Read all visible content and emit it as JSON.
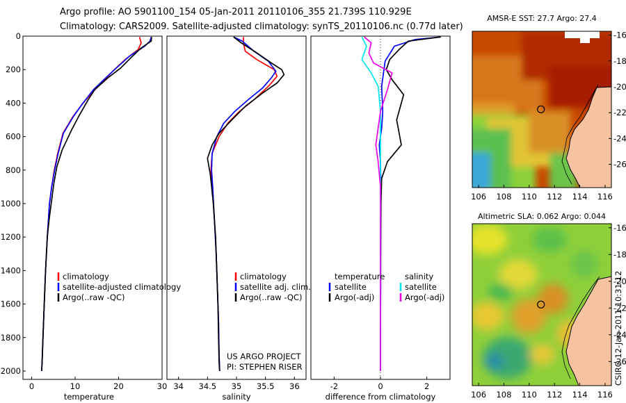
{
  "header": {
    "line1": "Argo profile: AO 5901100_154 05-Jan-2011 20110106_355 21.739S 110.929E",
    "line2": "Climatology: CARS2009. Satellite-adjusted climatology: synTS_20110106.nc (0.77d later)"
  },
  "colors": {
    "climatology": "#ff0000",
    "satellite": "#0000ff",
    "argo": "#000000",
    "sat_salinity": "#00e5ee",
    "argo_salinity": "#ee00ee"
  },
  "chart_data": [
    {
      "type": "line",
      "xlabel": "temperature",
      "ylabel": "",
      "xlim": [
        -2,
        30
      ],
      "ylim": [
        2050,
        0
      ],
      "xticks": [
        0,
        10,
        20,
        30
      ],
      "yticks": [
        0,
        200,
        400,
        600,
        800,
        1000,
        1200,
        1400,
        1600,
        1800,
        2000
      ],
      "legend": [
        "climatology",
        "satellite-adjusted climatology",
        "Argo(..raw -QC)"
      ],
      "legend_position": "lower-center",
      "series": [
        {
          "name": "climatology",
          "color": "#ff0000",
          "x": [
            24.8,
            25.2,
            24.5,
            21.5,
            19.0,
            16.8,
            14.2,
            11.8,
            9.5,
            7.2,
            6.0,
            5.2,
            4.6,
            4.1,
            3.6,
            3.2,
            2.9,
            2.6,
            2.4,
            2.3
          ],
          "y": [
            5,
            40,
            80,
            140,
            200,
            260,
            330,
            400,
            480,
            580,
            700,
            800,
            900,
            1000,
            1200,
            1400,
            1600,
            1800,
            1950,
            2000
          ]
        },
        {
          "name": "satellite",
          "color": "#0000ff",
          "x": [
            27.5,
            27.2,
            26.0,
            22.5,
            19.5,
            17.0,
            14.2,
            11.8,
            9.6,
            7.3,
            6.1,
            5.3,
            4.6,
            4.1,
            3.6,
            3.2,
            2.9,
            2.6,
            2.4,
            2.3
          ],
          "y": [
            5,
            30,
            60,
            120,
            190,
            250,
            320,
            400,
            480,
            580,
            700,
            800,
            900,
            1000,
            1200,
            1400,
            1600,
            1800,
            1950,
            2000
          ]
        },
        {
          "name": "Argo",
          "color": "#000000",
          "x": [
            27.6,
            27.5,
            25.2,
            22.8,
            20.5,
            17.5,
            14.5,
            13.0,
            11.0,
            9.2,
            7.0,
            5.8,
            5.1,
            4.5,
            4.0,
            3.6,
            3.2,
            2.9,
            2.6,
            2.4,
            2.3
          ],
          "y": [
            5,
            30,
            70,
            130,
            190,
            250,
            320,
            380,
            470,
            560,
            680,
            780,
            880,
            1000,
            1100,
            1200,
            1400,
            1600,
            1800,
            1950,
            2000
          ]
        }
      ]
    },
    {
      "type": "line",
      "xlabel": "salinity",
      "xlim": [
        33.8,
        36.2
      ],
      "ylim": [
        2050,
        0
      ],
      "xticks": [
        34,
        34.5,
        35,
        35.5,
        36
      ],
      "legend": [
        "climatology",
        "satellite adj. clim.",
        "Argo(..raw -QC)"
      ],
      "legend_position": "lower-center",
      "annotations": [
        "US ARGO PROJECT",
        "PI: STEPHEN RISER"
      ],
      "series": [
        {
          "name": "climatology",
          "color": "#ff0000",
          "x": [
            35.12,
            35.12,
            35.15,
            35.35,
            35.65,
            35.7,
            35.55,
            35.3,
            35.05,
            34.85,
            34.7,
            34.58,
            34.56,
            34.58,
            34.62,
            34.65,
            34.67,
            34.69,
            34.7,
            34.71
          ],
          "y": [
            5,
            40,
            90,
            140,
            200,
            240,
            300,
            380,
            450,
            520,
            600,
            700,
            800,
            900,
            1100,
            1300,
            1500,
            1700,
            1900,
            2000
          ]
        },
        {
          "name": "satellite",
          "color": "#0000ff",
          "x": [
            34.95,
            35.1,
            35.3,
            35.55,
            35.68,
            35.6,
            35.45,
            35.2,
            34.97,
            34.78,
            34.66,
            34.58,
            34.57,
            34.59,
            34.62,
            34.65,
            34.67,
            34.69,
            34.7,
            34.71
          ],
          "y": [
            5,
            30,
            90,
            150,
            210,
            250,
            310,
            380,
            450,
            520,
            600,
            700,
            800,
            900,
            1100,
            1300,
            1500,
            1700,
            1900,
            2000
          ]
        },
        {
          "name": "Argo",
          "color": "#000000",
          "x": [
            34.95,
            35.08,
            35.35,
            35.6,
            35.78,
            35.82,
            35.7,
            35.45,
            35.15,
            34.92,
            34.7,
            34.58,
            34.5,
            34.55,
            34.6,
            34.64,
            34.66,
            34.68,
            34.69,
            34.7,
            34.71
          ],
          "y": [
            5,
            40,
            100,
            160,
            200,
            230,
            280,
            340,
            420,
            500,
            580,
            650,
            730,
            830,
            1000,
            1200,
            1400,
            1600,
            1800,
            1950,
            2000
          ]
        }
      ]
    },
    {
      "type": "line",
      "xlabel": "difference from climatology",
      "xlim": [
        -3,
        3
      ],
      "ylim": [
        2050,
        0
      ],
      "xticks": [
        -2,
        0,
        2
      ],
      "legend_groups": [
        {
          "title": "temperature",
          "entries": [
            "satellite",
            "Argo(-adj)"
          ]
        },
        {
          "title": "salinity",
          "entries": [
            "satellite",
            "Argo(-adj)"
          ]
        }
      ],
      "legend_position": "lower-center",
      "series": [
        {
          "name": "temperature satellite",
          "color": "#0000ff",
          "x": [
            2.6,
            1.5,
            0.6,
            0.2,
            0.05,
            0.1,
            0.05,
            -0.05,
            0.0,
            0.02,
            0.0,
            0.01,
            0.0,
            0.0
          ],
          "y": [
            5,
            20,
            60,
            150,
            300,
            450,
            550,
            650,
            750,
            900,
            1200,
            1500,
            1800,
            2000
          ]
        },
        {
          "name": "temperature Argo(-adj)",
          "color": "#000000",
          "x": [
            2.6,
            1.2,
            0.8,
            0.4,
            0.25,
            0.5,
            1.0,
            0.7,
            0.9,
            0.3,
            0.05,
            0.02,
            0.01,
            0.0,
            0.0
          ],
          "y": [
            5,
            30,
            80,
            140,
            200,
            260,
            350,
            500,
            650,
            750,
            850,
            1000,
            1400,
            1800,
            2000
          ]
        },
        {
          "name": "salinity satellite",
          "color": "#00e5ee",
          "x": [
            -0.8,
            -0.6,
            -0.8,
            -0.4,
            -0.1,
            0.0,
            0.0,
            0.0,
            0.0,
            0.0
          ],
          "y": [
            5,
            60,
            140,
            220,
            300,
            450,
            600,
            900,
            1400,
            2000
          ]
        },
        {
          "name": "salinity Argo(-adj)",
          "color": "#ee00ee",
          "x": [
            -0.7,
            -0.4,
            -0.5,
            -0.3,
            0.5,
            0.3,
            0.0,
            -0.2,
            -0.1,
            0.0,
            0.0,
            0.0
          ],
          "y": [
            5,
            40,
            100,
            160,
            220,
            320,
            450,
            650,
            750,
            900,
            1300,
            2000
          ]
        }
      ]
    },
    {
      "type": "heatmap",
      "title": "AMSR-E SST: 27.7  Argo: 27.4",
      "xlim": [
        105.5,
        116.5
      ],
      "ylim": [
        -27.8,
        -15.7
      ],
      "xticks": [
        106,
        108,
        110,
        112,
        114,
        116
      ],
      "yticks": [
        -16,
        -18,
        -20,
        -22,
        -24,
        -26
      ],
      "argo_position": {
        "lon": 110.929,
        "lat": -21.739
      }
    },
    {
      "type": "heatmap",
      "title": "Altimetric SLA: 0.062  Argo: 0.044",
      "xlim": [
        105.5,
        116.5
      ],
      "ylim": [
        -27.8,
        -15.7
      ],
      "xticks": [
        106,
        108,
        110,
        112,
        114,
        116
      ],
      "yticks": [
        -16,
        -18,
        -20,
        -22,
        -24,
        -26
      ],
      "argo_position": {
        "lon": 110.929,
        "lat": -21.739
      }
    }
  ],
  "footer": {
    "credit": "CSIRO 12-Jan-2011 10:31:12"
  }
}
